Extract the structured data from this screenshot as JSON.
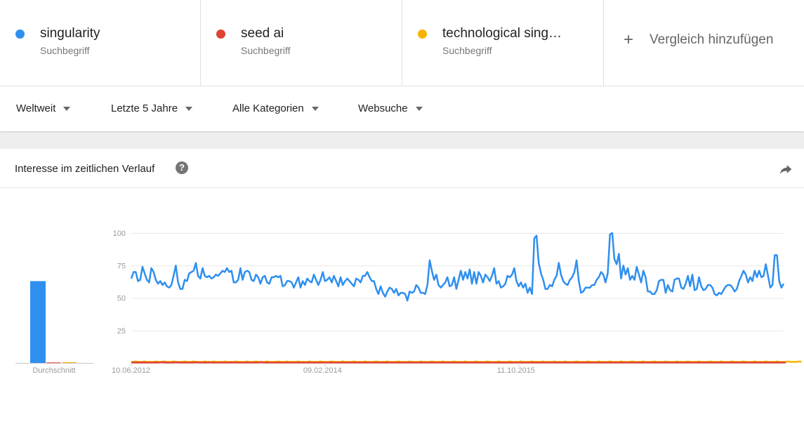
{
  "terms": [
    {
      "name": "singularity",
      "subtitle": "Suchbegriff",
      "color": "#2f8fef"
    },
    {
      "name": "seed ai",
      "subtitle": "Suchbegriff",
      "color": "#e04334"
    },
    {
      "name": "technological sing…",
      "subtitle": "Suchbegriff",
      "color": "#f6b400"
    }
  ],
  "add_compare": {
    "icon": "plus-icon",
    "label": "Vergleich hinzufügen"
  },
  "filters": [
    {
      "label": "Weltweit"
    },
    {
      "label": "Letzte 5 Jahre"
    },
    {
      "label": "Alle Kategorien"
    },
    {
      "label": "Websuche"
    }
  ],
  "card": {
    "title": "Interesse im zeitlichen Verlauf",
    "help_icon": "question-icon",
    "help_glyph": "?",
    "share_icon": "share-icon"
  },
  "chart_data": [
    {
      "type": "bar",
      "categories": [
        "Durchschnitt"
      ],
      "series": [
        {
          "name": "singularity",
          "values": [
            63
          ]
        },
        {
          "name": "seed ai",
          "values": [
            0.4
          ]
        },
        {
          "name": "technological singularity",
          "values": [
            0.6
          ]
        }
      ],
      "xlabel": "Durchschnitt",
      "ylim": [
        0,
        100
      ]
    },
    {
      "type": "line",
      "x_start": "10.06.2012",
      "x_step": "week",
      "x_tick_labels": [
        "10.06.2012",
        "09.02.2014",
        "11.10.2015"
      ],
      "x_tick_index": [
        0,
        87,
        174
      ],
      "yticks": [
        25,
        50,
        75,
        100
      ],
      "ylim": [
        0,
        100
      ],
      "grid": true,
      "series": [
        {
          "name": "singularity",
          "color": "#2f8fef",
          "values": [
            65,
            70,
            70,
            63,
            64,
            74,
            69,
            64,
            62,
            73,
            70,
            64,
            61,
            63,
            60,
            62,
            59,
            58,
            60,
            67,
            75,
            62,
            57,
            57,
            64,
            63,
            69,
            70,
            71,
            77,
            67,
            65,
            73,
            67,
            66,
            67,
            65,
            66,
            68,
            67,
            69,
            71,
            70,
            73,
            70,
            71,
            62,
            62,
            64,
            73,
            64,
            70,
            71,
            70,
            64,
            63,
            68,
            66,
            61,
            66,
            67,
            62,
            61,
            66,
            66,
            67,
            66,
            67,
            59,
            60,
            63,
            63,
            62,
            58,
            62,
            66,
            58,
            63,
            60,
            65,
            63,
            62,
            68,
            64,
            60,
            64,
            70,
            63,
            64,
            66,
            62,
            67,
            63,
            59,
            66,
            60,
            63,
            65,
            63,
            61,
            59,
            65,
            64,
            62,
            67,
            67,
            70,
            66,
            63,
            63,
            57,
            53,
            59,
            54,
            51,
            55,
            58,
            57,
            54,
            57,
            52,
            54,
            54,
            53,
            48,
            55,
            54,
            55,
            60,
            58,
            54,
            54,
            53,
            60,
            79,
            71,
            64,
            68,
            60,
            58,
            60,
            62,
            66,
            59,
            60,
            66,
            57,
            64,
            71,
            64,
            70,
            65,
            72,
            61,
            70,
            61,
            70,
            67,
            62,
            68,
            66,
            63,
            67,
            73,
            61,
            63,
            58,
            59,
            61,
            67,
            66,
            68,
            73,
            63,
            59,
            62,
            58,
            61,
            54,
            58,
            53,
            96,
            98,
            77,
            69,
            64,
            57,
            57,
            60,
            59,
            64,
            67,
            77,
            68,
            63,
            61,
            60,
            64,
            66,
            70,
            79,
            63,
            54,
            55,
            58,
            58,
            58,
            60,
            60,
            64,
            66,
            70,
            68,
            62,
            69,
            99,
            100,
            80,
            76,
            84,
            65,
            75,
            68,
            73,
            64,
            67,
            64,
            74,
            68,
            62,
            71,
            66,
            55,
            55,
            53,
            53,
            56,
            63,
            64,
            64,
            54,
            60,
            56,
            55,
            64,
            65,
            65,
            58,
            57,
            61,
            67,
            59,
            68,
            56,
            57,
            66,
            59,
            56,
            57,
            60,
            60,
            58,
            53,
            52,
            54,
            53,
            56,
            59,
            60,
            60,
            58,
            55,
            57,
            63,
            67,
            71,
            68,
            62,
            66,
            63,
            71,
            66,
            71,
            66,
            67,
            76,
            67,
            58,
            60,
            83,
            83,
            63,
            58,
            61
          ]
        },
        {
          "name": "seed ai",
          "color": "#e04334",
          "values": [
            0.5,
            0.3,
            0.3,
            0.4,
            0.3,
            0.4,
            0.3,
            0.3,
            0.3,
            0.3,
            0.3,
            0.4,
            0.4,
            0.5,
            0.6,
            0.4,
            0.3,
            0.3,
            0.3,
            0.3,
            0.6,
            0.4,
            0.3,
            0.3,
            0.3,
            0.3,
            0.3,
            0.3,
            0.3,
            0.6,
            0.4,
            0.3,
            0.3,
            0.3,
            0.3,
            0.5,
            0.4,
            0.3,
            0.3,
            0.3,
            0.3,
            0.3,
            0.3,
            0.3,
            0.3,
            0.5,
            0.4,
            0.3,
            0.3,
            0.3,
            0.3,
            0.3,
            0.3,
            0.3,
            0.3,
            0.3,
            0.3,
            0.3,
            0.6,
            0.4,
            0.3,
            0.3,
            0.3,
            0.3,
            0.3,
            0.3,
            0.3,
            0.3,
            0.3,
            0.3,
            0.3,
            0.3,
            0.3,
            0.3,
            0.3,
            0.3,
            0.3,
            0.3,
            0.3,
            0.3,
            0.3,
            0.3,
            0.3,
            0.3,
            0.3,
            0.3,
            0.3,
            0.3,
            0.3,
            0.3,
            0.3,
            0.3,
            0.3,
            0.3,
            0.3,
            0.3,
            0.3,
            0.3,
            0.3,
            0.3,
            0.3,
            0.3,
            0.3,
            0.3,
            0.3,
            0.3,
            0.3,
            0.3,
            0.3,
            0.3,
            0.3,
            0.3,
            0.3,
            0.3,
            0.3,
            0.3,
            0.3,
            0.3,
            0.3,
            0.3,
            0.3,
            0.3,
            0.3,
            0.3,
            0.3,
            0.3,
            0.3,
            0.3,
            0.3,
            0.3,
            0.3,
            0.3,
            0.3,
            0.3,
            0.3,
            0.3,
            0.3,
            0.3,
            0.3,
            0.3,
            0.3,
            0.3,
            0.3,
            0.3,
            0.3,
            0.3,
            0.3,
            0.3,
            0.3,
            0.3,
            0.3,
            0.3,
            0.3,
            0.3,
            0.3,
            0.3,
            0.3,
            0.3,
            0.3,
            0.3,
            0.3,
            0.3,
            0.3,
            0.3,
            0.3,
            0.3,
            0.3,
            0.3,
            0.3,
            0.3,
            0.3,
            0.3,
            0.3,
            0.3,
            0.3,
            0.3,
            0.3,
            0.3,
            0.3,
            0.3,
            0.3,
            0.3,
            0.3,
            0.3,
            0.3,
            0.3,
            0.3,
            0.3,
            0.3,
            0.3,
            0.3,
            0.3,
            0.3,
            0.3,
            0.3,
            0.3,
            0.3,
            0.3,
            0.3,
            0.3,
            0.3,
            0.3,
            0.3,
            0.3,
            0.3,
            0.3,
            0.3,
            0.3,
            0.3,
            0.3,
            0.3,
            0.3,
            0.3,
            0.3,
            0.3,
            0.3,
            0.3,
            0.3,
            0.3,
            0.3,
            0.3,
            0.3,
            0.3,
            0.3,
            0.3,
            0.3,
            0.3,
            0.3,
            0.3,
            0.3,
            0.3,
            0.3,
            0.3,
            0.3,
            0.3,
            0.3,
            0.3,
            0.3,
            0.3,
            0.3,
            0.3,
            0.3,
            0.3,
            0.3,
            0.3,
            0.3,
            0.3,
            0.3,
            0.3,
            0.3,
            0.3,
            0.3,
            0.3,
            0.3,
            0.3,
            0.3,
            0.3,
            0.3,
            0.3,
            0.3,
            0.3,
            0.3,
            0.3,
            0.3,
            0.3,
            0.3,
            0.3,
            0.3,
            0.3,
            0.3,
            0.3,
            0.3,
            0.3,
            0.3,
            0.3,
            0.3,
            0.3,
            0.3,
            0.3,
            0.3,
            0.3,
            0.3,
            0.3,
            0.3,
            0.3,
            0.3,
            0.3,
            0.3,
            0.3,
            0.3,
            0.3,
            0.3,
            0.3,
            0.3,
            0.3
          ]
        },
        {
          "name": "technological singularity",
          "color": "#f6b400",
          "values": [
            0.8,
            0.8,
            1.2,
            0.8,
            0.8,
            0.8,
            1.2,
            0.8,
            0.8,
            0.8,
            0.8,
            1.2,
            0.8,
            0.8,
            0.8,
            1.2,
            0.8,
            0.8,
            0.8,
            1.2,
            0.8,
            0.8,
            0.8,
            0.8,
            1.2,
            0.8,
            0.8,
            0.8,
            1.2,
            0.8,
            0.8,
            0.8,
            0.8,
            1.2,
            0.8,
            0.8,
            0.8,
            1.2,
            0.8,
            0.8,
            0.8,
            0.8,
            1.2,
            0.8,
            0.8,
            0.8,
            0.8,
            1.2,
            0.8,
            0.8,
            0.8,
            0.8,
            1.2,
            0.8,
            0.8,
            0.8,
            1.2,
            0.8,
            0.8,
            0.8,
            0.8,
            1.2,
            0.8,
            0.8,
            0.8,
            0.8,
            1.2,
            0.8,
            0.8,
            0.8,
            1.2,
            0.8,
            0.8,
            0.8,
            0.8,
            1.2,
            0.8,
            0.8,
            0.8,
            0.8,
            1.2,
            0.8,
            0.8,
            0.8,
            0.8,
            1.2,
            0.8,
            0.8,
            0.8,
            0.8,
            1.2,
            0.8,
            0.8,
            0.8,
            0.8,
            1.2,
            0.8,
            0.8,
            0.8,
            0.8,
            1.2,
            0.8,
            0.8,
            0.8,
            0.8,
            1.2,
            0.8,
            0.8,
            0.8,
            0.8,
            1.2,
            0.8,
            0.8,
            0.8,
            0.8,
            1.2,
            0.8,
            0.8,
            0.8,
            0.8,
            1.2,
            0.8,
            0.8,
            0.8,
            0.8,
            1.2,
            0.8,
            0.8,
            0.8,
            0.8,
            1.2,
            0.8,
            0.8,
            0.8,
            0.8,
            1.2,
            0.8,
            0.8,
            0.8,
            0.8,
            1.2,
            0.8,
            0.8,
            0.8,
            0.8,
            1.2,
            0.8,
            0.8,
            0.8,
            0.8,
            1.2,
            0.8,
            0.8,
            0.8,
            0.8,
            1.2,
            0.8,
            0.8,
            0.8,
            0.8,
            1.2,
            0.8,
            0.8,
            0.8,
            0.8,
            1.2,
            0.8,
            0.8,
            0.8,
            0.8,
            1.2,
            0.8,
            0.8,
            0.8,
            0.8,
            1.2,
            0.8,
            0.8,
            0.8,
            0.8,
            1.2,
            0.8,
            0.8,
            0.8,
            0.8,
            1.2,
            0.8,
            0.8,
            0.8,
            0.8,
            1.2,
            0.8,
            0.8,
            0.8,
            0.8,
            1.2,
            0.8,
            0.8,
            0.8,
            0.8,
            1.2,
            0.8,
            0.8,
            0.8,
            0.8,
            1.2,
            0.8,
            0.8,
            0.8,
            0.8,
            1.2,
            0.8,
            0.8,
            0.8,
            0.8,
            1.2,
            0.8,
            0.8,
            0.8,
            0.8,
            1.2,
            0.8,
            0.8,
            0.8,
            0.8,
            1.2,
            0.8,
            0.8,
            0.8,
            0.8,
            1.2,
            0.8,
            0.8,
            0.8,
            0.8,
            1.2,
            0.8,
            0.8,
            0.8,
            0.8,
            1.2,
            0.8,
            0.8,
            0.8,
            0.8,
            1.2,
            0.8,
            0.8,
            0.8,
            0.8,
            1.2,
            0.8,
            0.8,
            0.8,
            0.8,
            1.2,
            0.8,
            0.8,
            0.8,
            0.8,
            1.2,
            0.8,
            0.8,
            0.8,
            0.8,
            1.2,
            0.8,
            0.8,
            0.8,
            0.8,
            1.2,
            0.8,
            0.8,
            0.8,
            0.8,
            1.2,
            0.8,
            0.8,
            0.8,
            0.8,
            1.2,
            0.8,
            0.8,
            0.8,
            0.8,
            1.2,
            0.8,
            0.8,
            0.8,
            0.8,
            1.2,
            0.8,
            0.8,
            0.8,
            0.8,
            1.2,
            0.8,
            0.8,
            0.8,
            0.8,
            1.2,
            0.8
          ]
        }
      ]
    }
  ]
}
